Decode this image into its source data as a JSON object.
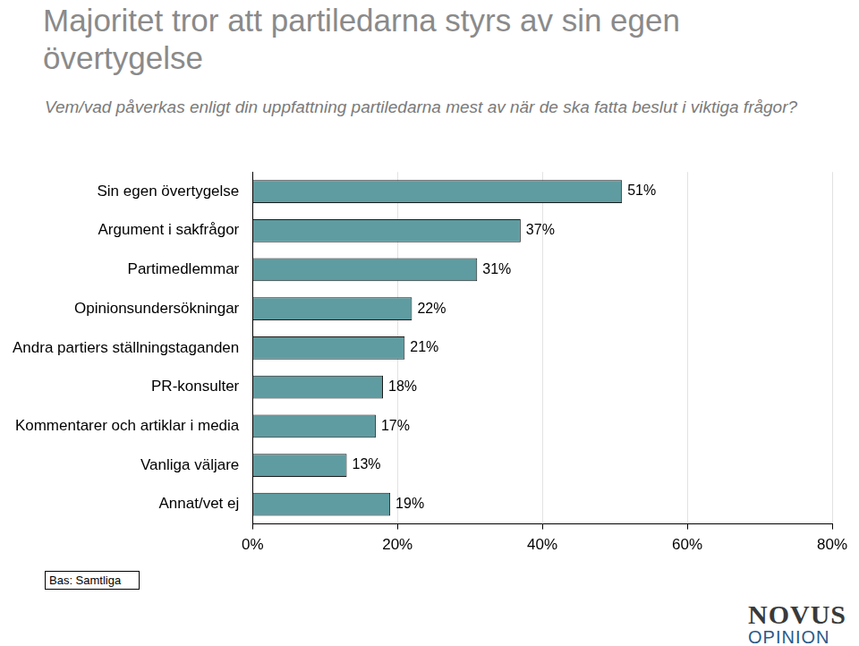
{
  "chart_data": {
    "type": "bar",
    "orientation": "horizontal",
    "title": "Majoritet tror att partiledarna styrs av sin egen övertygelse",
    "subtitle": "Vem/vad påverkas enligt din uppfattning partiledarna mest av när de ska fatta beslut i viktiga frågor?",
    "categories": [
      "Sin egen övertygelse",
      "Argument i sakfrågor",
      "Partimedlemmar",
      "Opinionsundersökningar",
      "Andra partiers ställningstaganden",
      "PR-konsulter",
      "Kommentarer och artiklar i media",
      "Vanliga väljare",
      "Annat/vet ej"
    ],
    "values": [
      51,
      37,
      31,
      22,
      21,
      18,
      17,
      13,
      19
    ],
    "value_labels": [
      "51%",
      "37%",
      "31%",
      "22%",
      "21%",
      "18%",
      "17%",
      "13%",
      "19%"
    ],
    "color": "#5f9ca1",
    "xlim": [
      0,
      80
    ],
    "xticks": [
      {
        "value": 0,
        "label": "0%"
      },
      {
        "value": 20,
        "label": "20%"
      },
      {
        "value": 40,
        "label": "40%"
      },
      {
        "value": 60,
        "label": "60%"
      },
      {
        "value": 80,
        "label": "80%"
      }
    ],
    "grid": true,
    "data_labels": true,
    "note": "Bas: Samtliga",
    "logo": [
      "NOVUS",
      "OPINION"
    ]
  }
}
